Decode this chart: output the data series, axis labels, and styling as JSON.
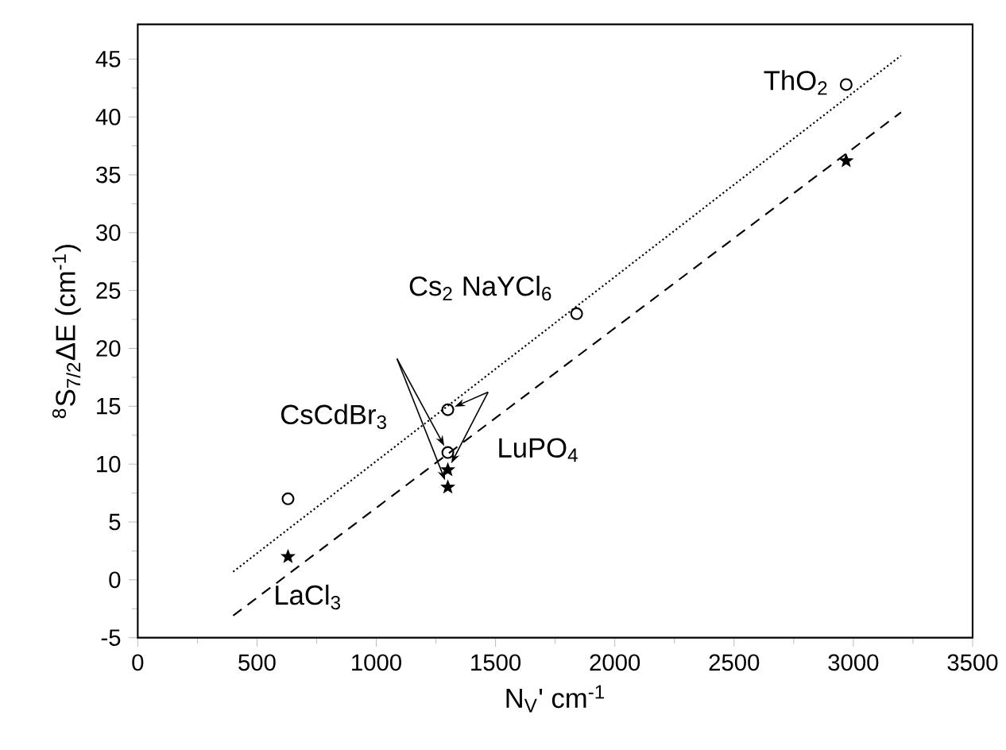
{
  "chart_data": {
    "type": "scatter",
    "xlabel": "N$_{V}$' cm$^{-1}$",
    "ylabel": "$^{8}$S$_{7/2}$ΔE (cm$^{-1}$)",
    "xlim": [
      0,
      3500
    ],
    "ylim": [
      -5,
      48
    ],
    "xticks": [
      0,
      500,
      1000,
      1500,
      2000,
      2500,
      3000,
      3500
    ],
    "yticks": [
      -5,
      0,
      5,
      10,
      15,
      20,
      25,
      30,
      35,
      40,
      45
    ],
    "series": [
      {
        "type": "scatter",
        "marker": "circle",
        "color": "#000000",
        "x": [
          630,
          1300,
          1300,
          1840,
          2970
        ],
        "values": [
          7,
          14.7,
          11,
          23,
          42.8
        ]
      },
      {
        "type": "scatter",
        "marker": "star",
        "color": "#000000",
        "x": [
          630,
          1300,
          1300,
          2970
        ],
        "values": [
          2,
          9.5,
          8,
          36.2
        ]
      },
      {
        "type": "line",
        "marker": "none",
        "line_style": "dotted",
        "color": "#000000",
        "x": [
          400,
          3200
        ],
        "values": [
          0.7,
          45.3
        ]
      },
      {
        "type": "line",
        "marker": "none",
        "line_style": "dashed",
        "color": "#000000",
        "x": [
          400,
          3200
        ],
        "values": [
          -3.1,
          40.4
        ]
      }
    ],
    "annotations": [
      {
        "text": "ThO$_{2}$",
        "x": 2970,
        "y": 42.8
      },
      {
        "text": "Cs$_{2}$ NaYCl$_{6}$",
        "x": 1840,
        "y": 23
      },
      {
        "text": "CsCdBr$_{3}$",
        "x": 1300,
        "y": 11
      },
      {
        "text": "LuPO$_{4}$",
        "x": 1300,
        "y": 14.7
      },
      {
        "text": "LaCl$_{3}$",
        "x": 630,
        "y": 2
      }
    ]
  }
}
